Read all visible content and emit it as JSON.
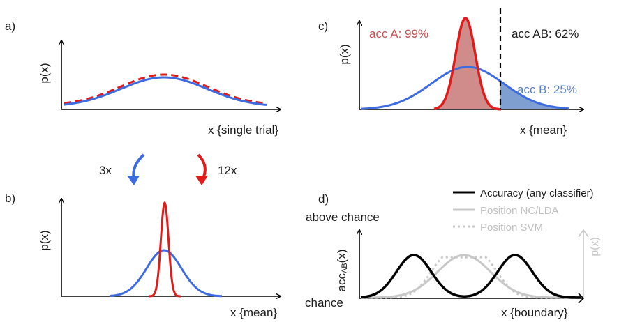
{
  "panels": {
    "a": {
      "letter": "a)",
      "ylabel": "p(x)",
      "xlabel": "x {single trial}"
    },
    "b": {
      "letter": "b)",
      "ylabel": "p(x)",
      "xlabel": "x {mean}"
    },
    "c": {
      "letter": "c)",
      "ylabel": "p(x)",
      "xlabel": "x {mean}",
      "acc_a": "acc A: 99%",
      "acc_b": "acc B: 25%",
      "acc_ab": "acc AB: 62%"
    },
    "d": {
      "letter": "d)",
      "ylabel_main": "acc",
      "ylabel_sub": "AB",
      "ylabel_tail": "(x)",
      "y_top": "above chance",
      "y_bottom": "chance",
      "xlabel": "x {boundary}",
      "right_ylabel": "p(x)",
      "legend": [
        {
          "label": "Accuracy (any classifier)",
          "style": "solid-black"
        },
        {
          "label": "Position NC/LDA",
          "style": "solid-gray"
        },
        {
          "label": "Position SVM",
          "style": "dotted-gray"
        }
      ]
    }
  },
  "arrows": {
    "left_label": "3x",
    "right_label": "12x"
  },
  "colors": {
    "blue": "#3d6be0",
    "red": "#e11a1a",
    "black": "#000000",
    "gray": "#c8c8c8",
    "text_red": "#c85050",
    "text_blue": "#5b7fc0",
    "fill_red": "#d08b8b",
    "fill_blue": "#7f9fd0"
  }
}
